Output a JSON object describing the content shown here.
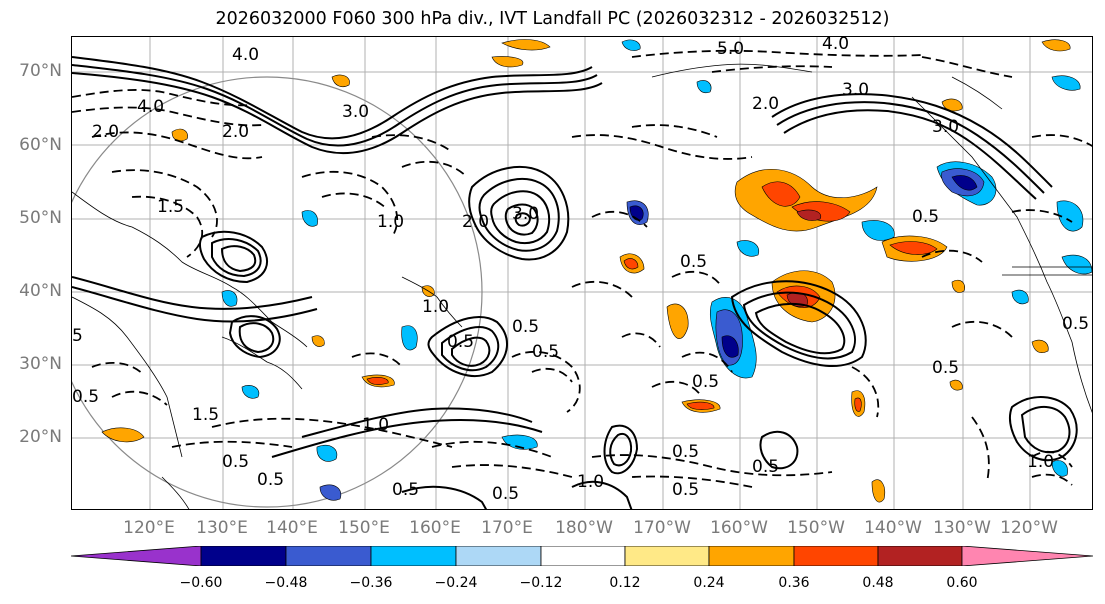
{
  "title": "2026032000 F060 300 hPa div., IVT Landfall PC (2026032312 - 2026032512)",
  "map": {
    "lat_labels": [
      "70°N",
      "60°N",
      "50°N",
      "40°N",
      "30°N",
      "20°N"
    ],
    "lon_labels": [
      "120°E",
      "130°E",
      "140°E",
      "150°E",
      "160°E",
      "170°E",
      "180°W",
      "170°W",
      "160°W",
      "150°W",
      "140°W",
      "130°W",
      "120°W"
    ],
    "contour_labels": [
      "4.0",
      "5.0",
      "4.0",
      "3.0",
      "3.0",
      "2.0",
      "3.0",
      "2.0",
      "4.0",
      "2.0",
      "3.0",
      "2.0",
      "1.5",
      "5",
      "1.0",
      "0.5",
      "0.5",
      "1.0",
      "0.5",
      "1.5",
      "0.5",
      "1.0",
      "0.5",
      "0.5",
      "0.5",
      "1.0",
      "0.5",
      "0.5",
      "0.5",
      "0.5",
      "0.5",
      "1.0",
      "0.5",
      "0.5",
      "0.5",
      "0.5"
    ]
  },
  "colorbar": {
    "ticks": [
      "−0.60",
      "−0.48",
      "−0.36",
      "−0.24",
      "−0.12",
      "0.12",
      "0.24",
      "0.36",
      "0.48",
      "0.60"
    ],
    "colors": [
      "#9932cc",
      "#00008b",
      "#3a5bd0",
      "#00bfff",
      "#add8f6",
      "#ffffff",
      "#ffe987",
      "#ffa500",
      "#ff4500",
      "#b22222",
      "#ff85b0"
    ]
  }
}
